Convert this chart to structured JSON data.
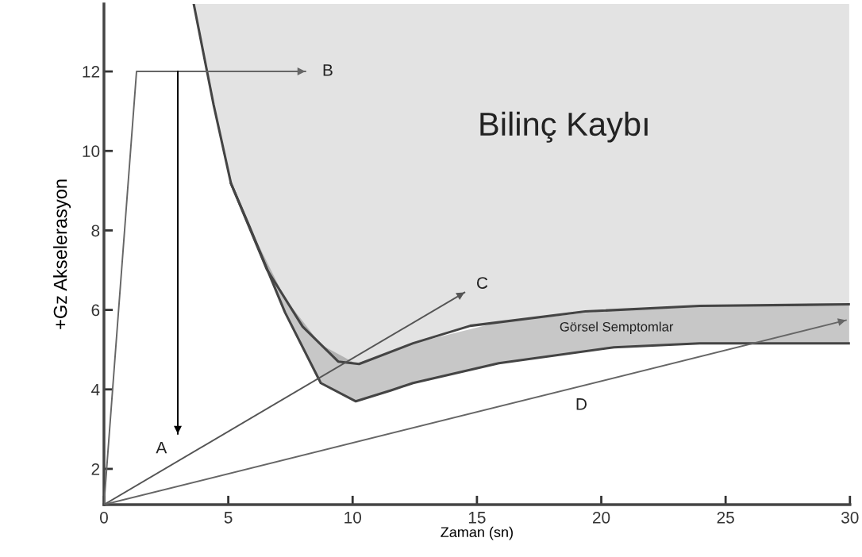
{
  "chart_data": {
    "type": "line",
    "xlabel": "Zaman (sn)",
    "ylabel": "+Gz Akselerasyon",
    "xlim": [
      0,
      30
    ],
    "xticks": [
      0,
      5,
      10,
      15,
      20,
      25,
      30
    ],
    "ylim": [
      1.1,
      13.7
    ],
    "yticks": [
      2,
      4,
      6,
      8,
      10,
      12
    ],
    "grid": false,
    "series": [
      {
        "color": "#444444",
        "x": [
          5.11,
          5.85,
          7.28,
          8.72,
          10.13,
          11.57,
          12.43,
          15.88,
          20.51,
          23.96,
          29.97
        ],
        "values": [
          9.18,
          8.1,
          5.94,
          4.16,
          3.7,
          3.98,
          4.16,
          4.66,
          5.06,
          5.16,
          5.16
        ],
        "lower": [
          9.18,
          8.1,
          5.94,
          4.16,
          3.7,
          3.98,
          4.16,
          4.66,
          5.06,
          5.16,
          5.16
        ],
        "upper": [
          9.18,
          8.1,
          6.29,
          5.13,
          4.65,
          4.95,
          5.16,
          5.69,
          6.0,
          6.1,
          6.14
        ]
      },
      {
        "color": "#444444",
        "x": [
          3.61,
          4.41,
          5.11,
          6.55,
          7.99,
          9.42,
          10.26,
          12.43,
          14.73,
          19.36,
          23.96,
          29.97
        ],
        "values": [
          13.7,
          11.16,
          9.18,
          7.02,
          5.58,
          4.7,
          4.64,
          5.16,
          5.6,
          5.96,
          6.1,
          6.14
        ],
        "lower": [
          13.7,
          11.16,
          9.18,
          7.02,
          5.58,
          4.7,
          4.64,
          5.16,
          5.6,
          5.96,
          6.1,
          6.14
        ],
        "upper": [
          13.7,
          13.7,
          13.7,
          13.7,
          13.7,
          13.7,
          13.7,
          13.7,
          13.7,
          13.7,
          13.7,
          13.7
        ]
      },
      {
        "color": "#666666",
        "x": [
          0,
          1.31,
          8.1
        ],
        "values": [
          1.1,
          12,
          12
        ]
      },
      {
        "color": "#000000",
        "x": [
          2.97,
          2.97
        ],
        "values": [
          12,
          2.88
        ]
      },
      {
        "color": "#555555",
        "x": [
          0,
          14.5
        ],
        "values": [
          1.1,
          6.44
        ]
      },
      {
        "color": "#666666",
        "x": [
          0,
          29.84
        ],
        "values": [
          1.1,
          5.74
        ]
      }
    ],
    "annotations": [
      "Bilinç Kaybı",
      "Görsel Semptomlar",
      "A",
      "B",
      "C",
      "D"
    ]
  }
}
